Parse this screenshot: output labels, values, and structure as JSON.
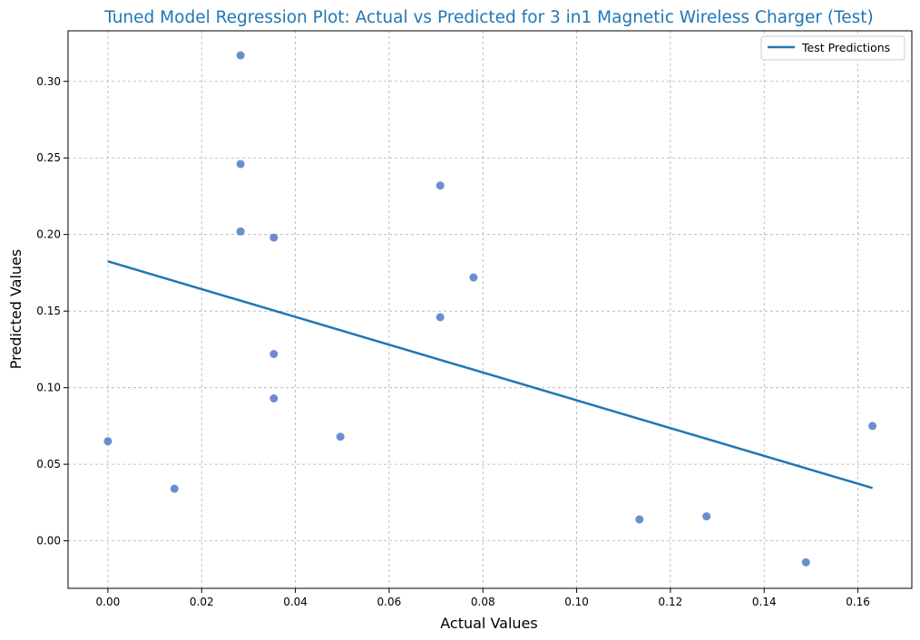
{
  "chart_data": {
    "type": "scatter",
    "title": "Tuned Model Regression Plot: Actual vs Predicted for 3 in1 Magnetic Wireless Charger (Test)",
    "xlabel": "Actual Values",
    "ylabel": "Predicted Values",
    "xlim": [
      -0.0085,
      0.1715
    ],
    "ylim": [
      -0.031,
      0.333
    ],
    "xticks": [
      0.0,
      0.02,
      0.04,
      0.06,
      0.08,
      0.1,
      0.12,
      0.14,
      0.16
    ],
    "xtick_labels": [
      "0.00",
      "0.02",
      "0.04",
      "0.06",
      "0.08",
      "0.10",
      "0.12",
      "0.14",
      "0.16"
    ],
    "yticks": [
      0.0,
      0.05,
      0.1,
      0.15,
      0.2,
      0.25,
      0.3
    ],
    "ytick_labels": [
      "0.00",
      "0.05",
      "0.10",
      "0.15",
      "0.20",
      "0.25",
      "0.30"
    ],
    "grid": true,
    "legend_position": "top-right",
    "series": [
      {
        "kind": "scatter",
        "color": "#4472c4",
        "points": [
          {
            "x": 0.0,
            "y": 0.065
          },
          {
            "x": 0.0142,
            "y": 0.034
          },
          {
            "x": 0.0283,
            "y": 0.317
          },
          {
            "x": 0.0283,
            "y": 0.246
          },
          {
            "x": 0.0283,
            "y": 0.202
          },
          {
            "x": 0.0354,
            "y": 0.198
          },
          {
            "x": 0.0354,
            "y": 0.122
          },
          {
            "x": 0.0354,
            "y": 0.093
          },
          {
            "x": 0.0496,
            "y": 0.068
          },
          {
            "x": 0.0709,
            "y": 0.232
          },
          {
            "x": 0.0709,
            "y": 0.146
          },
          {
            "x": 0.078,
            "y": 0.172
          },
          {
            "x": 0.1134,
            "y": 0.014
          },
          {
            "x": 0.1277,
            "y": 0.016
          },
          {
            "x": 0.1489,
            "y": -0.014
          },
          {
            "x": 0.1631,
            "y": 0.075
          }
        ]
      },
      {
        "kind": "line",
        "name": "Test Predictions",
        "color": "#1f77b4",
        "points": [
          {
            "x": 0.0,
            "y": 0.1825
          },
          {
            "x": 0.1631,
            "y": 0.0345
          }
        ]
      }
    ],
    "title_color": "#1f77b4",
    "grid_color": "#b0b0b0"
  }
}
